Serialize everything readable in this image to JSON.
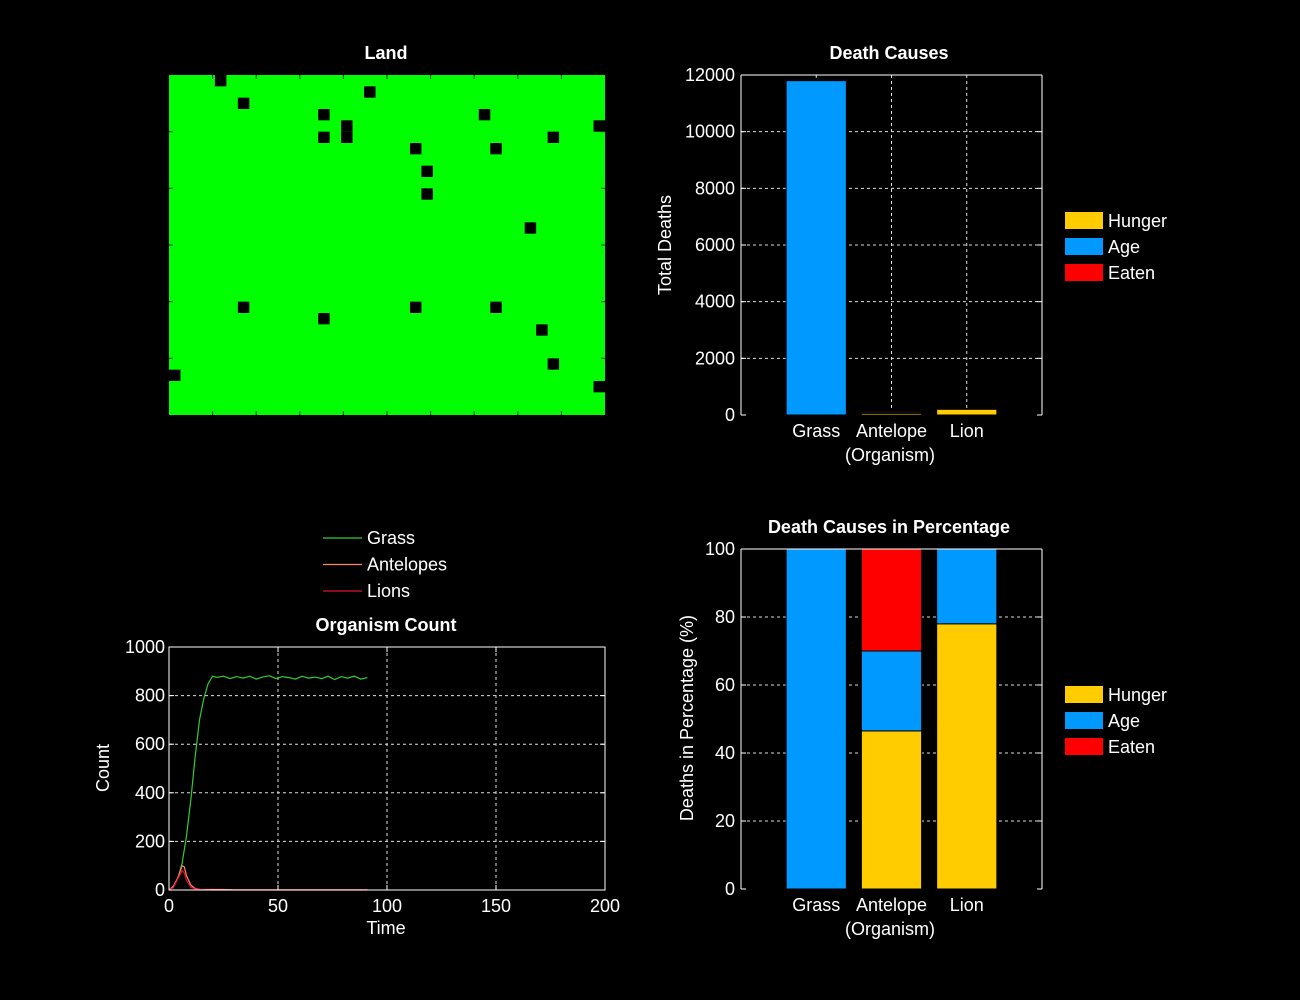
{
  "colors": {
    "background": "#000000",
    "grass_green": "#00ff00",
    "hunger": "#ffcc00",
    "age": "#0099ff",
    "eaten": "#ff0000",
    "grass_line": "#33cc33",
    "antelope_line": "#ff8866",
    "lion_line": "#dd1133"
  },
  "chart_data": [
    {
      "type": "heatmap",
      "title": "Land",
      "background": "#00ff00",
      "cell": "#000000",
      "grid_cols": 38,
      "grid_rows": 30,
      "occupied_cells": [
        [
          4,
          0
        ],
        [
          6,
          2
        ],
        [
          13,
          3
        ],
        [
          17,
          1
        ],
        [
          27,
          3
        ],
        [
          37,
          4
        ],
        [
          13,
          5
        ],
        [
          15,
          4
        ],
        [
          15,
          5
        ],
        [
          21,
          6
        ],
        [
          28,
          6
        ],
        [
          33,
          5
        ],
        [
          22,
          8
        ],
        [
          22,
          10
        ],
        [
          31,
          13
        ],
        [
          6,
          20
        ],
        [
          13,
          21
        ],
        [
          21,
          20
        ],
        [
          28,
          20
        ],
        [
          32,
          22
        ],
        [
          0,
          26
        ],
        [
          33,
          25
        ],
        [
          37,
          27
        ]
      ]
    },
    {
      "type": "bar",
      "title": "Death Causes",
      "xlabel_line1": "",
      "xlabel_line2": "(Organism)",
      "ylabel": "Total Deaths",
      "categories": [
        "Grass",
        "Antelope",
        "Lion"
      ],
      "series": [
        {
          "name": "Hunger",
          "values": [
            0,
            60,
            200
          ]
        },
        {
          "name": "Age",
          "values": [
            11800,
            40,
            0
          ]
        },
        {
          "name": "Eaten",
          "values": [
            0,
            40,
            0
          ]
        }
      ],
      "ylim": [
        0,
        12000
      ],
      "yticks": [
        0,
        2000,
        4000,
        6000,
        8000,
        10000,
        12000
      ],
      "grid": true,
      "legend": "right"
    },
    {
      "type": "line",
      "title": "Organism Count",
      "xlabel": "Time",
      "ylabel": "Count",
      "xlim": [
        0,
        200
      ],
      "ylim": [
        0,
        1000
      ],
      "xticks": [
        0,
        50,
        100,
        150,
        200
      ],
      "yticks": [
        0,
        200,
        400,
        600,
        800,
        1000
      ],
      "grid": true,
      "legend": "top",
      "series": [
        {
          "name": "Grass",
          "x": [
            0,
            2,
            4,
            6,
            8,
            10,
            12,
            14,
            16,
            18,
            20,
            22,
            25,
            28,
            31,
            34,
            37,
            40,
            43,
            46,
            49,
            52,
            55,
            58,
            61,
            64,
            67,
            70,
            73,
            76,
            79,
            82,
            85,
            88,
            91
          ],
          "y": [
            0,
            15,
            45,
            110,
            220,
            370,
            550,
            700,
            790,
            850,
            880,
            875,
            880,
            870,
            878,
            872,
            880,
            868,
            876,
            882,
            870,
            878,
            874,
            868,
            880,
            872,
            876,
            870,
            880,
            866,
            878,
            872,
            880,
            868,
            874
          ]
        },
        {
          "name": "Antelopes",
          "x": [
            0,
            2,
            4,
            6,
            7,
            8,
            10,
            12,
            14,
            17,
            20,
            25,
            30,
            40,
            60,
            91
          ],
          "y": [
            0,
            15,
            50,
            100,
            95,
            60,
            20,
            6,
            3,
            2,
            2,
            2,
            1,
            1,
            1,
            1
          ]
        },
        {
          "name": "Lions",
          "x": [
            0,
            2,
            4,
            6,
            7,
            8,
            10,
            12,
            14,
            17,
            20,
            30,
            91
          ],
          "y": [
            0,
            10,
            45,
            80,
            70,
            40,
            12,
            4,
            2,
            1,
            0,
            0,
            0
          ]
        }
      ]
    },
    {
      "type": "bar",
      "title": "Death Causes in Percentage",
      "xlabel_line1": "",
      "xlabel_line2": "(Organism)",
      "ylabel": "Deaths in Percentage (%)",
      "categories": [
        "Grass",
        "Antelope",
        "Lion"
      ],
      "series": [
        {
          "name": "Hunger",
          "values": [
            0,
            46.5,
            78
          ]
        },
        {
          "name": "Age",
          "values": [
            100,
            23.5,
            22
          ]
        },
        {
          "name": "Eaten",
          "values": [
            0,
            30,
            0
          ]
        }
      ],
      "ylim": [
        0,
        100
      ],
      "yticks": [
        0,
        20,
        40,
        60,
        80,
        100
      ],
      "grid": true,
      "legend": "right"
    }
  ]
}
